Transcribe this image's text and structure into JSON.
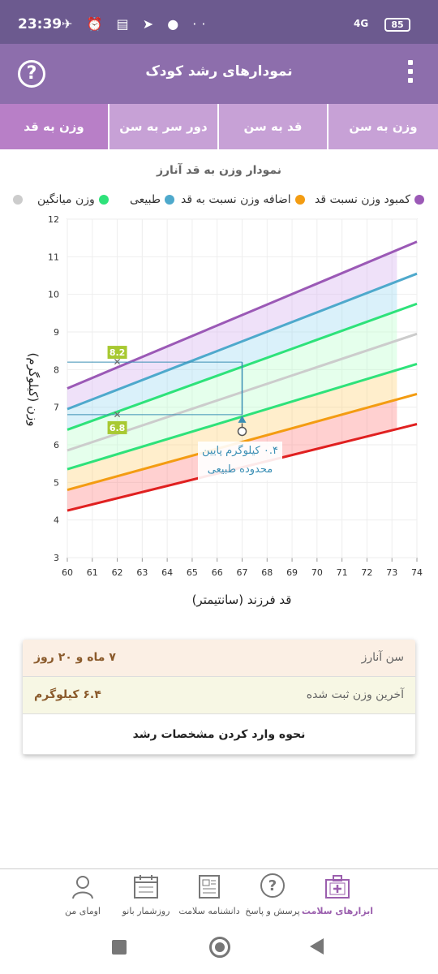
{
  "status": {
    "time": "23:39",
    "network": "4G",
    "battery": "85"
  },
  "appbar": {
    "title": "نمودارهای رشد کودک",
    "help_icon": "?"
  },
  "tabs": [
    {
      "label": "وزن به سن"
    },
    {
      "label": "قد به سن"
    },
    {
      "label": "دور سر به سن"
    },
    {
      "label": "وزن به قد"
    }
  ],
  "chart_title": "نمودار وزن به قد آنارز",
  "legend": [
    {
      "label": "کمبود وزن نسبت قد",
      "color": "#9b59b6"
    },
    {
      "label": "اضافه وزن نسبت به قد",
      "color": "#f39c12"
    },
    {
      "label": "طبیعی",
      "color": "#4ea9cc"
    },
    {
      "label": "وزن میانگین",
      "color": "#2ee27a"
    },
    {
      "label": "",
      "color": "#cccccc"
    }
  ],
  "chart_data": {
    "type": "line",
    "xlabel": "قد فرزند (سانتیمتر)",
    "ylabel": "وزن (کیلوگرم)",
    "xlim": [
      60,
      74
    ],
    "ylim": [
      3,
      12
    ],
    "x_ticks": [
      "60",
      "61",
      "62",
      "63",
      "64",
      "65",
      "66",
      "67",
      "68",
      "69",
      "70",
      "71",
      "72",
      "73",
      "74"
    ],
    "y_ticks": [
      "3",
      "4",
      "5",
      "6",
      "7",
      "8",
      "9",
      "10",
      "11",
      "12"
    ],
    "x": [
      60,
      74
    ],
    "series": [
      {
        "color": "#e02020",
        "values": [
          4.25,
          6.55
        ]
      },
      {
        "color": "#f39c12",
        "values": [
          4.8,
          7.35
        ]
      },
      {
        "color": "#2ee27a",
        "values": [
          5.35,
          8.15
        ]
      },
      {
        "color": "#cccccc",
        "values": [
          5.85,
          8.95
        ]
      },
      {
        "color": "#2ee27a",
        "values": [
          6.4,
          9.75
        ]
      },
      {
        "color": "#4ea9cc",
        "values": [
          6.95,
          10.55
        ]
      },
      {
        "color": "#9b59b6",
        "values": [
          7.5,
          11.4
        ]
      }
    ],
    "markers": [
      {
        "label": "8.2",
        "x": 62,
        "y": 8.2
      },
      {
        "label": "6.8",
        "x": 62,
        "y": 6.8
      }
    ],
    "child_point": {
      "x": 67,
      "y": 6.4
    },
    "annotation": [
      "۰.۴ کیلوگرم پایین",
      "محدوده طبیعی"
    ]
  },
  "info": {
    "age_label": "سن آنارز",
    "age_value": "۷ ماه و ۲۰ روز",
    "weight_label": "آخرین وزن ثبت شده",
    "weight_value": "۶.۴ کیلوگرم",
    "howto": "نحوه وارد کردن مشخصات رشد"
  },
  "nav": [
    {
      "label": "اومای من",
      "icon": "user-icon"
    },
    {
      "label": "روزشمار بانو",
      "icon": "calendar-icon"
    },
    {
      "label": "دانشنامه سلامت",
      "icon": "newspaper-icon"
    },
    {
      "label": "پرسش و پاسخ",
      "icon": "question-icon"
    },
    {
      "label": "ابزارهای سلامت",
      "icon": "medkit-icon"
    }
  ]
}
